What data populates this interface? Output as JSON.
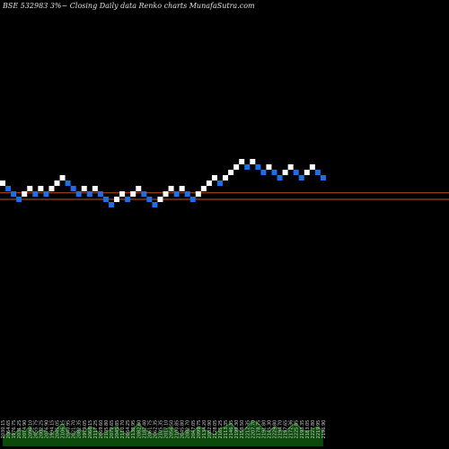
{
  "header": {
    "title": "BSE 532983 3%~ Closing Daily data  Renko  charts MunafaSutra.com"
  },
  "colors": {
    "background": "#000000",
    "up_brick": "#ffffff",
    "down_brick": "#1e6fe6",
    "level_line": "#c0521f",
    "volume_fill": "#0c4a0c",
    "volume_line": "#2e8b2e",
    "label_text": "#cfcfcf"
  },
  "chart_data": {
    "type": "renko",
    "brick_size_label": "3%",
    "levels": [
      {
        "name": "upper-level",
        "value": 0.2
      },
      {
        "name": "lower-level",
        "value": -1.0
      }
    ],
    "bricks": [
      {
        "level": 2,
        "dir": "up"
      },
      {
        "level": 1,
        "dir": "down"
      },
      {
        "level": 0,
        "dir": "down"
      },
      {
        "level": -1,
        "dir": "down"
      },
      {
        "level": 0,
        "dir": "up"
      },
      {
        "level": 1,
        "dir": "up"
      },
      {
        "level": 0,
        "dir": "down"
      },
      {
        "level": 1,
        "dir": "up"
      },
      {
        "level": 0,
        "dir": "down"
      },
      {
        "level": 1,
        "dir": "up"
      },
      {
        "level": 2,
        "dir": "up"
      },
      {
        "level": 3,
        "dir": "up"
      },
      {
        "level": 2,
        "dir": "down"
      },
      {
        "level": 1,
        "dir": "down"
      },
      {
        "level": 0,
        "dir": "down"
      },
      {
        "level": 1,
        "dir": "up"
      },
      {
        "level": 0,
        "dir": "down"
      },
      {
        "level": 1,
        "dir": "up"
      },
      {
        "level": 0,
        "dir": "down"
      },
      {
        "level": -1,
        "dir": "down"
      },
      {
        "level": -2,
        "dir": "down"
      },
      {
        "level": -1,
        "dir": "up"
      },
      {
        "level": 0,
        "dir": "up"
      },
      {
        "level": -1,
        "dir": "down"
      },
      {
        "level": 0,
        "dir": "up"
      },
      {
        "level": 1,
        "dir": "up"
      },
      {
        "level": 0,
        "dir": "down"
      },
      {
        "level": -1,
        "dir": "down"
      },
      {
        "level": -2,
        "dir": "down"
      },
      {
        "level": -1,
        "dir": "up"
      },
      {
        "level": 0,
        "dir": "up"
      },
      {
        "level": 1,
        "dir": "up"
      },
      {
        "level": 0,
        "dir": "down"
      },
      {
        "level": 1,
        "dir": "up"
      },
      {
        "level": 0,
        "dir": "down"
      },
      {
        "level": -1,
        "dir": "down"
      },
      {
        "level": 0,
        "dir": "up"
      },
      {
        "level": 1,
        "dir": "up"
      },
      {
        "level": 2,
        "dir": "up"
      },
      {
        "level": 3,
        "dir": "up"
      },
      {
        "level": 2,
        "dir": "down"
      },
      {
        "level": 3,
        "dir": "up"
      },
      {
        "level": 4,
        "dir": "up"
      },
      {
        "level": 5,
        "dir": "up"
      },
      {
        "level": 6,
        "dir": "up"
      },
      {
        "level": 5,
        "dir": "down"
      },
      {
        "level": 6,
        "dir": "up"
      },
      {
        "level": 5,
        "dir": "down"
      },
      {
        "level": 4,
        "dir": "down"
      },
      {
        "level": 5,
        "dir": "up"
      },
      {
        "level": 4,
        "dir": "down"
      },
      {
        "level": 3,
        "dir": "down"
      },
      {
        "level": 4,
        "dir": "up"
      },
      {
        "level": 5,
        "dir": "up"
      },
      {
        "level": 4,
        "dir": "down"
      },
      {
        "level": 3,
        "dir": "down"
      },
      {
        "level": 4,
        "dir": "up"
      },
      {
        "level": 5,
        "dir": "up"
      },
      {
        "level": 4,
        "dir": "down"
      },
      {
        "level": 3,
        "dir": "down"
      }
    ],
    "volume": [
      3,
      5,
      4,
      6,
      5,
      7,
      4,
      6,
      5,
      4,
      6,
      8,
      5,
      4,
      6,
      5,
      7,
      6,
      4,
      5,
      6,
      7,
      5,
      4,
      6,
      8,
      6,
      5,
      4,
      5,
      6,
      7,
      5,
      4,
      6,
      5,
      7,
      6,
      5,
      4,
      6,
      7,
      8,
      6,
      5,
      7,
      9,
      8,
      6,
      5,
      7,
      6,
      5,
      7,
      8,
      6,
      5,
      6,
      7,
      5
    ],
    "x_tick_labels": [
      "2030.15",
      "2064.65",
      "1976.75",
      "2031.25",
      "2074.90",
      "2096.10",
      "2055.75",
      "2002.25",
      "2076.90",
      "1994.15",
      "2045.05",
      "2106.15",
      "2040.95",
      "2021.70",
      "2082.35",
      "1979.05",
      "2068.15",
      "2117.25",
      "2069.60",
      "2105.80",
      "2079.65",
      "2045.85",
      "2110.70",
      "2064.25",
      "2138.95",
      "2082.60",
      "2182.40",
      "2061.75",
      "2062.35",
      "2105.35",
      "2017.10",
      "2056.50",
      "2100.85",
      "2045.80",
      "2082.70",
      "2047.05",
      "2099.75",
      "2134.20",
      "2082.90",
      "2128.05",
      "2165.25",
      "2113.35",
      "2146.35",
      "2199.30",
      "2158.50",
      "2212.35",
      "2207.70",
      "2178.75",
      "2191.80",
      "2145.30",
      "2229.80",
      "2194.70",
      "2197.65",
      "2172.36",
      "2225.85",
      "2193.35",
      "2183.05",
      "2227.80",
      "2219.95",
      "2196.90"
    ]
  }
}
